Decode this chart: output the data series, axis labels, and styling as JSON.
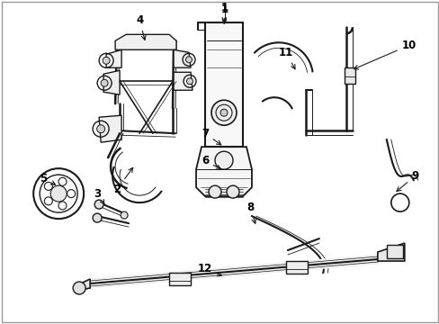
{
  "bg_color": "#ffffff",
  "line_color": "#1a1a1a",
  "label_color": "#000000",
  "fig_width": 4.89,
  "fig_height": 3.6,
  "dpi": 100,
  "border_color": "#cccccc"
}
